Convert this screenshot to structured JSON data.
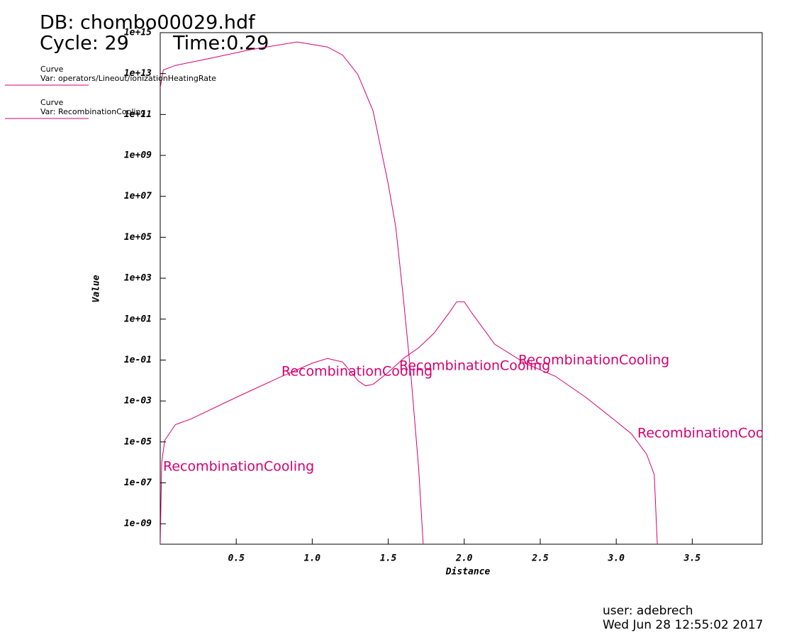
{
  "chart_data": {
    "type": "line",
    "title": "DB: chombo00029.hdf",
    "cycle": "Cycle: 29",
    "time": "Time:0.29",
    "xlabel": "Distance",
    "ylabel": "Value",
    "legend_label": "Curve",
    "user": "user: adebrech",
    "date": "Wed Jun 28 12:55:02 2017",
    "log_y": true,
    "xlim": [
      0,
      3.96
    ],
    "ylim": [
      1e-10,
      1000000000000000.0
    ],
    "xticks": [
      0.5,
      {
        "value": 1,
        "label": "1.0"
      },
      1.5,
      {
        "value": 2,
        "label": "2.0"
      },
      2.5,
      {
        "value": 3,
        "label": "3.0"
      },
      3.5
    ],
    "yticks": [
      {
        "value": 1000000000000000.0,
        "label": "1e+15"
      },
      {
        "value": 10000000000000.0,
        "label": "1e+13"
      },
      {
        "value": 100000000000.0,
        "label": "1e+11"
      },
      {
        "value": 1000000000.0,
        "label": "1e+09"
      },
      {
        "value": 10000000.0,
        "label": "1e+07"
      },
      {
        "value": 100000.0,
        "label": "1e+05"
      },
      {
        "value": 1000.0,
        "label": "1e+03"
      },
      {
        "value": 10,
        "label": "1e+01"
      },
      {
        "value": 0.1,
        "label": "1e-01"
      },
      {
        "value": 0.001,
        "label": "1e-03"
      },
      {
        "value": 1e-05,
        "label": "1e-05"
      },
      {
        "value": 1e-07,
        "label": "1e-07"
      },
      {
        "value": 1e-09,
        "label": "1e-09"
      }
    ],
    "series": [
      {
        "name": "Var: operators/Lineout/ionizationHeatingRate",
        "color": "#d6006f",
        "x": [
          0,
          0.02,
          0.1,
          0.3,
          0.6,
          0.9,
          1.1,
          1.2,
          1.3,
          1.4,
          1.5,
          1.55,
          1.6,
          1.65,
          1.7,
          1.73
        ],
        "values": [
          2000000000000.0,
          15000000000000.0,
          25000000000000.0,
          50000000000000.0,
          150000000000000.0,
          350000000000000.0,
          200000000000000.0,
          80000000000000.0,
          9000000000000.0,
          150000000000.0,
          40000000.0,
          300000.0,
          100,
          0.015,
          5e-07,
          1e-10
        ]
      },
      {
        "name": "Var: RecombinationCooling",
        "color": "#d6006f",
        "curve_label": "RecombinationCooling",
        "x": [
          0,
          0.01,
          0.03,
          0.1,
          0.2,
          0.5,
          0.8,
          1.0,
          1.1,
          1.2,
          1.3,
          1.35,
          1.4,
          1.5,
          1.6,
          1.7,
          1.8,
          1.9,
          1.95,
          2.0,
          2.05,
          2.2,
          2.4,
          2.6,
          2.8,
          3.0,
          3.1,
          3.2,
          3.25,
          3.27
        ],
        "values": [
          1e-10,
          1e-06,
          1.2e-05,
          7e-05,
          0.00013,
          0.0015,
          0.016,
          0.07,
          0.12,
          0.08,
          0.01,
          0.0055,
          0.0065,
          0.025,
          0.12,
          0.4,
          2,
          20,
          70,
          70,
          20,
          0.6,
          0.07,
          0.016,
          0.0015,
          0.0001,
          2.5e-05,
          2.5e-06,
          2.5e-07,
          1e-10
        ]
      }
    ]
  }
}
